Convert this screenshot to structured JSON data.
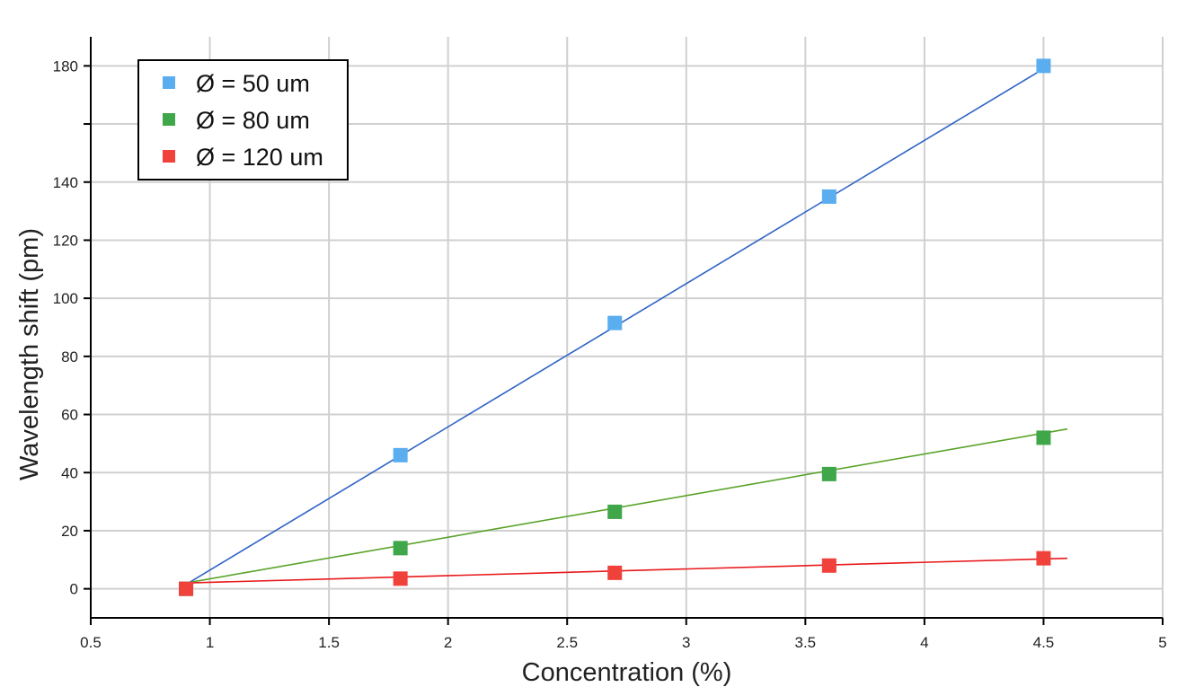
{
  "chart_data": {
    "type": "scatter",
    "title": "",
    "xlabel": "Concentration (%)",
    "ylabel": "Wavelength shift (pm)",
    "xlim": [
      0.5,
      5
    ],
    "ylim": [
      -10,
      190
    ],
    "x_ticks": [
      0.5,
      1,
      1.5,
      2,
      2.5,
      3,
      3.5,
      4,
      4.5,
      5
    ],
    "x_tick_labels": [
      "0.5",
      "1",
      "1.5",
      "2",
      "2.5",
      "3",
      "3.5",
      "4",
      "4.5",
      "5"
    ],
    "y_gridlines": [
      0,
      20,
      40,
      60,
      80,
      100,
      120,
      140,
      160,
      180
    ],
    "y_tick_labels": [
      {
        "value": 0,
        "label": "0"
      },
      {
        "value": 20,
        "label": "20"
      },
      {
        "value": 40,
        "label": "40"
      },
      {
        "value": 60,
        "label": "60"
      },
      {
        "value": 80,
        "label": "80"
      },
      {
        "value": 100,
        "label": "100"
      },
      {
        "value": 120,
        "label": "120"
      },
      {
        "value": 140,
        "label": "140"
      },
      {
        "value": 160,
        "label": ""
      },
      {
        "value": 180,
        "label": "180"
      }
    ],
    "grid": true,
    "legend_position": "top-left",
    "series": [
      {
        "name": "Ø = 50 um",
        "marker_color": "#5aaef0",
        "line_color": "#2f63c6",
        "x": [
          0.9,
          1.8,
          2.7,
          3.6,
          4.5
        ],
        "y": [
          0,
          46,
          91.5,
          135,
          180
        ],
        "fit": {
          "x": [
            0.9,
            4.5
          ],
          "y": [
            1.5,
            179
          ]
        }
      },
      {
        "name": "Ø = 80 um",
        "marker_color": "#3fa64a",
        "line_color": "#5aa32b",
        "x": [
          0.9,
          1.8,
          2.7,
          3.6,
          4.5
        ],
        "y": [
          0,
          14,
          26.5,
          39.5,
          52
        ],
        "fit": {
          "x": [
            0.9,
            4.6
          ],
          "y": [
            2,
            55
          ]
        }
      },
      {
        "name": "Ø = 120 um",
        "marker_color": "#f0413a",
        "line_color": "#e8191c",
        "x": [
          0.9,
          1.8,
          2.7,
          3.6,
          4.5
        ],
        "y": [
          0,
          3.5,
          5.5,
          8,
          10.5
        ],
        "fit": {
          "x": [
            0.9,
            4.6
          ],
          "y": [
            2,
            10.5
          ]
        }
      }
    ]
  }
}
